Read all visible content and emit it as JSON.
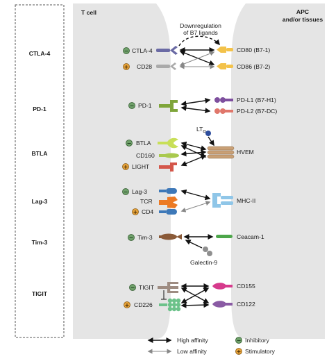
{
  "left_panel": {
    "rows": [
      {
        "key": "ctla4",
        "label": "CTLA-4"
      },
      {
        "key": "pd1",
        "label": "PD-1"
      },
      {
        "key": "btla",
        "label": "BTLA"
      },
      {
        "key": "lag3",
        "label": "Lag-3"
      },
      {
        "key": "tim3",
        "label": "Tim-3"
      },
      {
        "key": "tigit",
        "label": "TIGIT"
      }
    ]
  },
  "header": {
    "tcell": "T cell",
    "apc_line1": "APC",
    "apc_line2": "and/or tissues"
  },
  "downregulation": {
    "line1": "Downregulation",
    "line2": "of B7 ligands"
  },
  "tcell_receptors": {
    "ctla4": "CTLA-4",
    "cd28": "CD28",
    "pd1": "PD-1",
    "btla": "BTLA",
    "cd160": "CD160",
    "light": "LIGHT",
    "lag3": "Lag-3",
    "tcr": "TCR",
    "cd4": "CD4",
    "tim3": "Tim-3",
    "tigit": "TIGIT",
    "cd226": "CD226"
  },
  "apc_ligands": {
    "cd80": "CD80 (B7-1)",
    "cd86": "CD86 (B7-2)",
    "pdl1": "PD-L1 (B7-H1)",
    "pdl2": "PD-L2 (B7-DC)",
    "hvem": "HVEM",
    "mhc2": "MHC-II",
    "ceacam1": "Ceacam-1",
    "cd155": "CD155",
    "cd122": "CD122"
  },
  "soluble": {
    "lta_base": "LT",
    "lta_sub": "α",
    "galectin9": "Galectin-9"
  },
  "badges": {
    "inhibitory_symbol": "−",
    "stimulatory_symbol": "+"
  },
  "legend": {
    "high": "High affinity",
    "low": "Low affinity",
    "inhibitory": "Inhibitory",
    "stimulatory": "Stimulatory"
  },
  "colors": {
    "membrane": "#e5e5e5",
    "inhibitory_badge": "#6fa06a",
    "stimulatory_badge": "#e6a23a",
    "ctla4": "#6a6aa4",
    "b7": "#f3c24a",
    "pd1": "#7fa53a",
    "pdl1": "#7e4f9e",
    "pdl2": "#e0776b",
    "btla": "#c8df58",
    "cd160": "#a9c94e",
    "light": "#d4564a",
    "hvem": "#c9a076",
    "lag3": "#3d78b8",
    "tcr": "#ec7a24",
    "mhc2": "#8fc6e8",
    "tim3": "#8a5a38",
    "ceacam1": "#4da64a",
    "tigit": "#9e8c82",
    "cd226": "#6cc28a",
    "cd155": "#d63a8c",
    "cd122": "#8a5ba4",
    "lta": "#2c4c9c",
    "galectin": "#8f8f8f"
  }
}
